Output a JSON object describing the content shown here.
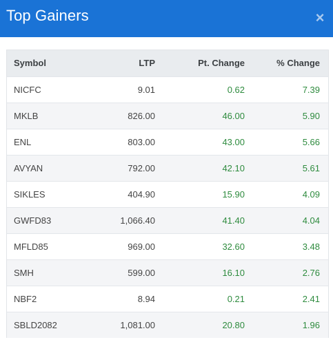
{
  "header": {
    "title": "Top Gainers",
    "close_glyph": "×",
    "background": "#1a73d6"
  },
  "table": {
    "columns": [
      "Symbol",
      "LTP",
      "Pt. Change",
      "% Change"
    ],
    "rows": [
      {
        "symbol": "NICFC",
        "ltp": "9.01",
        "pt_change": "0.62",
        "pct_change": "7.39"
      },
      {
        "symbol": "MKLB",
        "ltp": "826.00",
        "pt_change": "46.00",
        "pct_change": "5.90"
      },
      {
        "symbol": "ENL",
        "ltp": "803.00",
        "pt_change": "43.00",
        "pct_change": "5.66"
      },
      {
        "symbol": "AVYAN",
        "ltp": "792.00",
        "pt_change": "42.10",
        "pct_change": "5.61"
      },
      {
        "symbol": "SIKLES",
        "ltp": "404.90",
        "pt_change": "15.90",
        "pct_change": "4.09"
      },
      {
        "symbol": "GWFD83",
        "ltp": "1,066.40",
        "pt_change": "41.40",
        "pct_change": "4.04"
      },
      {
        "symbol": "MFLD85",
        "ltp": "969.00",
        "pt_change": "32.60",
        "pct_change": "3.48"
      },
      {
        "symbol": "SMH",
        "ltp": "599.00",
        "pt_change": "16.10",
        "pct_change": "2.76"
      },
      {
        "symbol": "NBF2",
        "ltp": "8.94",
        "pt_change": "0.21",
        "pct_change": "2.41"
      },
      {
        "symbol": "SBLD2082",
        "ltp": "1,081.00",
        "pt_change": "20.80",
        "pct_change": "1.96"
      }
    ],
    "positive_color": "#2e8b3e"
  }
}
